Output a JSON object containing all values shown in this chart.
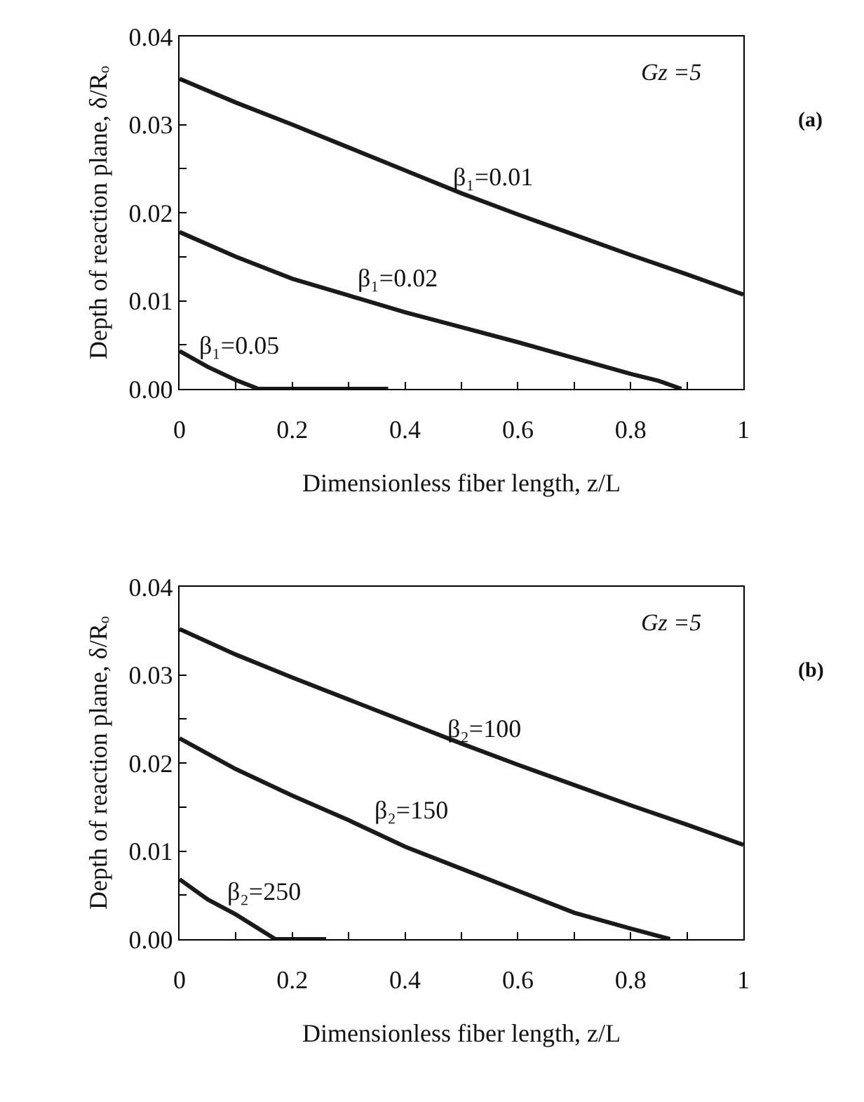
{
  "chart_data": [
    {
      "type": "line",
      "xlabel": "Dimensionless fiber length, z/L",
      "ylabel": "Depth of reaction plane, δ/Rₒ",
      "xlim": [
        0,
        1
      ],
      "ylim": [
        0,
        0.04
      ],
      "xticks": [
        0,
        {
          "value": 0.1,
          "label": null
        },
        0.2,
        {
          "value": 0.3,
          "label": null
        },
        0.4,
        {
          "value": 0.5,
          "label": null
        },
        0.6,
        {
          "value": 0.7,
          "label": null
        },
        0.8,
        {
          "value": 0.9,
          "label": null
        },
        1
      ],
      "yticks": [
        {
          "value": 0,
          "label": "0.00"
        },
        {
          "value": 0.005,
          "label": null
        },
        0.01,
        {
          "value": 0.015,
          "label": null
        },
        0.02,
        {
          "value": 0.025,
          "label": null
        },
        0.03,
        {
          "value": 0.035,
          "label": null
        },
        0.04
      ],
      "grid": false,
      "marker": "none",
      "line_style": "solid",
      "series": [
        {
          "color": "#1a1a1a",
          "x": [
            0,
            0.1,
            0.2,
            0.3,
            0.4,
            0.5,
            0.6,
            0.7,
            0.8,
            0.9,
            1
          ],
          "values": [
            0.0352,
            0.0325,
            0.03,
            0.0274,
            0.0248,
            0.0222,
            0.0198,
            0.0175,
            0.0152,
            0.013,
            0.0107
          ]
        },
        {
          "color": "#1a1a1a",
          "x": [
            0,
            0.1,
            0.2,
            0.3,
            0.4,
            0.5,
            0.6,
            0.7,
            0.8,
            0.85,
            0.89
          ],
          "values": [
            0.0178,
            0.015,
            0.0125,
            0.0106,
            0.0087,
            0.007,
            0.0053,
            0.0035,
            0.0017,
            0.0009,
            0
          ]
        },
        {
          "color": "#1a1a1a",
          "x": [
            0,
            0.05,
            0.1,
            0.14,
            0.37
          ],
          "values": [
            0.0043,
            0.0025,
            0.001,
            0,
            0
          ]
        }
      ],
      "annotations": [
        {
          "text": "β₁=0.01",
          "x": 0.48,
          "y": 0.0222
        },
        {
          "text": "β₁=0.02",
          "x": 0.31,
          "y": 0.0107
        },
        {
          "text": "β₁=0.05",
          "x": 0.03,
          "y": 0.003
        },
        "Gz =5",
        "(a)"
      ]
    },
    {
      "type": "line",
      "xlabel": "Dimensionless fiber length, z/L",
      "ylabel": "Depth of reaction plane, δ/Rₒ",
      "xlim": [
        0,
        1
      ],
      "ylim": [
        0,
        0.04
      ],
      "xticks": [
        0,
        {
          "value": 0.1,
          "label": null
        },
        0.2,
        {
          "value": 0.3,
          "label": null
        },
        0.4,
        {
          "value": 0.5,
          "label": null
        },
        0.6,
        {
          "value": 0.7,
          "label": null
        },
        0.8,
        {
          "value": 0.9,
          "label": null
        },
        1
      ],
      "yticks": [
        {
          "value": 0,
          "label": "0.00"
        },
        {
          "value": 0.005,
          "label": null
        },
        0.01,
        {
          "value": 0.015,
          "label": null
        },
        0.02,
        {
          "value": 0.025,
          "label": null
        },
        0.03,
        {
          "value": 0.035,
          "label": null
        },
        0.04
      ],
      "grid": false,
      "marker": "none",
      "line_style": "solid",
      "series": [
        {
          "color": "#1a1a1a",
          "x": [
            0,
            0.1,
            0.2,
            0.3,
            0.4,
            0.5,
            0.6,
            0.7,
            0.8,
            0.9,
            1
          ],
          "values": [
            0.0352,
            0.0323,
            0.0297,
            0.0272,
            0.0247,
            0.0222,
            0.0198,
            0.0175,
            0.0152,
            0.013,
            0.0107
          ]
        },
        {
          "color": "#1a1a1a",
          "x": [
            0,
            0.1,
            0.2,
            0.3,
            0.4,
            0.5,
            0.6,
            0.7,
            0.8,
            0.87
          ],
          "values": [
            0.0228,
            0.0193,
            0.0163,
            0.0135,
            0.0105,
            0.008,
            0.0055,
            0.003,
            0.0012,
            0
          ]
        },
        {
          "color": "#1a1a1a",
          "x": [
            0,
            0.05,
            0.1,
            0.17,
            0.26
          ],
          "values": [
            0.0068,
            0.0045,
            0.0028,
            0,
            0
          ]
        }
      ],
      "annotations": [
        {
          "text": "β₂=100",
          "x": 0.47,
          "y": 0.022
        },
        {
          "text": "β₂=150",
          "x": 0.34,
          "y": 0.0128
        },
        {
          "text": "β₂=250",
          "x": 0.08,
          "y": 0.0035
        },
        "Gz =5",
        "(b)"
      ]
    }
  ]
}
